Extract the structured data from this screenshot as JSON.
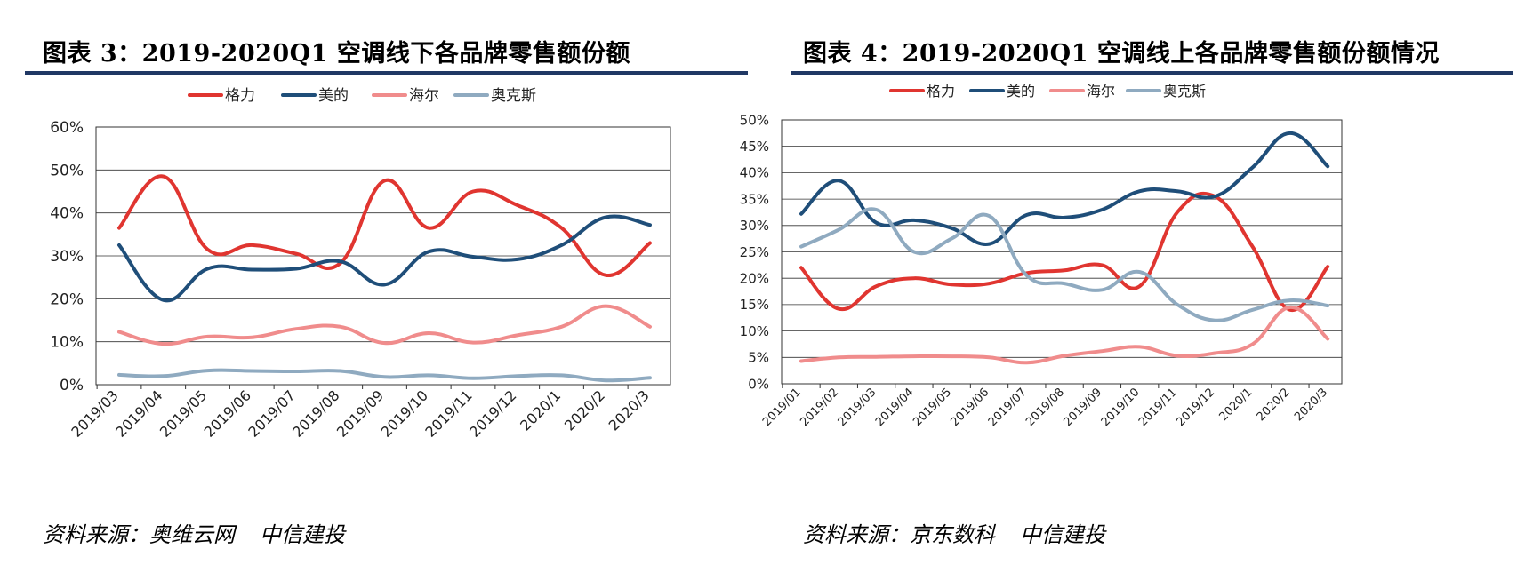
{
  "source_prefix": "资料来源：",
  "chart_data": [
    {
      "type": "line",
      "title": "图表 3：2019-2020Q1 空调线下各品牌零售额份额",
      "source": [
        "奥维云网",
        "中信建投"
      ],
      "categories": [
        "2019/03",
        "2019/04",
        "2019/05",
        "2019/06",
        "2019/07",
        "2019/08",
        "2019/09",
        "2019/10",
        "2019/11",
        "2019/12",
        "2020/1",
        "2020/2",
        "2020/3"
      ],
      "ylim": [
        0,
        0.6
      ],
      "yticks": [
        0,
        0.1,
        0.2,
        0.3,
        0.4,
        0.5,
        0.6
      ],
      "ytick_labels": [
        "0%",
        "10%",
        "20%",
        "30%",
        "40%",
        "50%",
        "60%"
      ],
      "grid": true,
      "legend_position": "top",
      "series": [
        {
          "name": "格力",
          "color": "#E03530",
          "values": [
            0.365,
            0.485,
            0.315,
            0.325,
            0.305,
            0.283,
            0.475,
            0.365,
            0.45,
            0.418,
            0.365,
            0.255,
            0.33
          ]
        },
        {
          "name": "美的",
          "color": "#1F4E79",
          "values": [
            0.325,
            0.197,
            0.27,
            0.268,
            0.27,
            0.287,
            0.233,
            0.31,
            0.298,
            0.292,
            0.325,
            0.39,
            0.372
          ]
        },
        {
          "name": "海尔",
          "color": "#F08C8C",
          "values": [
            0.123,
            0.095,
            0.112,
            0.11,
            0.13,
            0.135,
            0.097,
            0.12,
            0.098,
            0.115,
            0.135,
            0.183,
            0.135
          ]
        },
        {
          "name": "奥克斯",
          "color": "#8FAAC0",
          "values": [
            0.023,
            0.02,
            0.033,
            0.032,
            0.031,
            0.032,
            0.018,
            0.022,
            0.015,
            0.02,
            0.022,
            0.01,
            0.016
          ]
        }
      ]
    },
    {
      "type": "line",
      "title": "图表 4：2019-2020Q1 空调线上各品牌零售额份额情况",
      "source": [
        "京东数科",
        "中信建投"
      ],
      "categories": [
        "2019/01",
        "2019/02",
        "2019/03",
        "2019/04",
        "2019/05",
        "2019/06",
        "2019/07",
        "2019/08",
        "2019/09",
        "2019/10",
        "2019/11",
        "2019/12",
        "2020/1",
        "2020/2",
        "2020/3"
      ],
      "ylim": [
        0,
        0.5
      ],
      "yticks": [
        0,
        0.05,
        0.1,
        0.15,
        0.2,
        0.25,
        0.3,
        0.35,
        0.4,
        0.45,
        0.5
      ],
      "ytick_labels": [
        "0%",
        "5%",
        "10%",
        "15%",
        "20%",
        "25%",
        "30%",
        "35%",
        "40%",
        "45%",
        "50%"
      ],
      "grid": true,
      "legend_position": "top",
      "series": [
        {
          "name": "格力",
          "color": "#E03530",
          "values": [
            0.22,
            0.142,
            0.185,
            0.2,
            0.188,
            0.19,
            0.21,
            0.215,
            0.225,
            0.185,
            0.325,
            0.355,
            0.26,
            0.14,
            0.222
          ]
        },
        {
          "name": "美的",
          "color": "#1F4E79",
          "values": [
            0.322,
            0.385,
            0.305,
            0.31,
            0.295,
            0.265,
            0.32,
            0.315,
            0.33,
            0.365,
            0.365,
            0.355,
            0.41,
            0.475,
            0.412
          ]
        },
        {
          "name": "海尔",
          "color": "#F08C8C",
          "values": [
            0.043,
            0.05,
            0.051,
            0.052,
            0.052,
            0.05,
            0.04,
            0.053,
            0.062,
            0.07,
            0.053,
            0.058,
            0.075,
            0.145,
            0.085
          ]
        },
        {
          "name": "奥克斯",
          "color": "#8FAAC0",
          "values": [
            0.26,
            0.292,
            0.33,
            0.25,
            0.275,
            0.318,
            0.205,
            0.19,
            0.178,
            0.212,
            0.15,
            0.12,
            0.14,
            0.158,
            0.148
          ]
        }
      ]
    }
  ]
}
